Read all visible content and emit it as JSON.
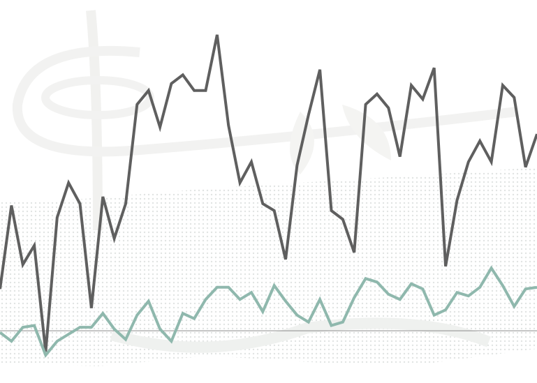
{
  "chart_data": {
    "type": "line",
    "x": [
      0,
      1,
      2,
      3,
      4,
      5,
      6,
      7,
      8,
      9,
      10,
      11,
      12,
      13,
      14,
      15,
      16,
      17,
      18,
      19,
      20,
      21,
      22,
      23,
      24,
      25,
      26,
      27,
      28,
      29,
      30,
      31,
      32,
      33,
      34,
      35,
      36,
      37,
      38,
      39,
      40,
      41,
      42,
      43,
      44,
      45,
      46,
      47
    ],
    "xlim": [
      0,
      47
    ],
    "ylim": [
      -30,
      190
    ],
    "series": [
      {
        "name": null,
        "color": "#5f5f5f",
        "values": [
          24,
          72,
          38,
          49,
          -12,
          65,
          85,
          73,
          13,
          77,
          53,
          73,
          130,
          138,
          117,
          142,
          147,
          138,
          138,
          170,
          118,
          85,
          97,
          73,
          69,
          41,
          95,
          124,
          150,
          69,
          64,
          45,
          130,
          136,
          128,
          100,
          141,
          133,
          151,
          37,
          75,
          97,
          109,
          97,
          141,
          134,
          94,
          113
        ]
      },
      {
        "name": null,
        "color": "#8fb8ad",
        "values": [
          -1,
          -6,
          2,
          3,
          -14,
          -6,
          -2,
          2,
          2,
          10,
          1,
          -5,
          9,
          17,
          1,
          -6,
          10,
          7,
          18,
          25,
          25,
          18,
          22,
          11,
          26,
          17,
          9,
          5,
          18,
          3,
          5,
          19,
          30,
          28,
          21,
          18,
          27,
          24,
          9,
          12,
          22,
          20,
          25,
          36,
          26,
          14,
          24,
          25
        ]
      }
    ]
  }
}
